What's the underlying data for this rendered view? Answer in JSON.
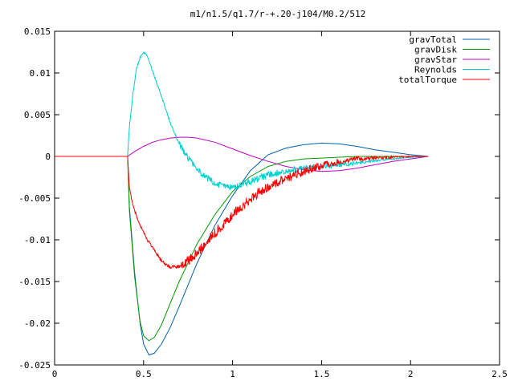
{
  "chart_data": {
    "type": "line",
    "title": "m1/n1.5/q1.7/r-+.20-j104/M0.2/512",
    "xlabel": "",
    "ylabel": "",
    "xlim": [
      0,
      2.5
    ],
    "ylim": [
      -0.025,
      0.015
    ],
    "xticks": [
      "0",
      "0.5",
      "1",
      "1.5",
      "2",
      "2.5"
    ],
    "xtick_values": [
      0,
      0.5,
      1,
      1.5,
      2,
      2.5
    ],
    "yticks": [
      "0.015",
      "0.01",
      "0.005",
      "0",
      "-0.005",
      "-0.01",
      "-0.015",
      "-0.02",
      "-0.025"
    ],
    "ytick_values": [
      0.015,
      0.01,
      0.005,
      0,
      -0.005,
      -0.01,
      -0.015,
      -0.02,
      -0.025
    ],
    "grid": false,
    "legend_position": "top-right",
    "series": [
      {
        "name": "gravTotal",
        "color": "#0060ad",
        "noise": 0,
        "x": [
          0,
          0.41,
          0.42,
          0.45,
          0.48,
          0.5,
          0.53,
          0.56,
          0.6,
          0.65,
          0.7,
          0.8,
          0.9,
          1.0,
          1.1,
          1.2,
          1.3,
          1.4,
          1.5,
          1.6,
          1.7,
          1.8,
          1.9,
          2.0,
          2.1
        ],
        "y": [
          0,
          0,
          -0.006,
          -0.014,
          -0.02,
          -0.0225,
          -0.0238,
          -0.0236,
          -0.0225,
          -0.0205,
          -0.018,
          -0.0128,
          -0.0083,
          -0.0047,
          -0.0017,
          0.0002,
          0.001,
          0.0014,
          0.0016,
          0.0015,
          0.0012,
          0.0008,
          0.0005,
          0.0002,
          0
        ]
      },
      {
        "name": "gravDisk",
        "color": "#009e00",
        "noise": 0,
        "x": [
          0,
          0.41,
          0.42,
          0.45,
          0.48,
          0.5,
          0.53,
          0.56,
          0.6,
          0.65,
          0.7,
          0.8,
          0.9,
          1.0,
          1.1,
          1.2,
          1.3,
          1.4,
          1.5,
          1.6,
          1.7,
          1.8,
          1.9,
          2.0,
          2.1
        ],
        "y": [
          0,
          0,
          -0.0065,
          -0.0145,
          -0.0198,
          -0.0215,
          -0.0221,
          -0.0217,
          -0.0202,
          -0.0176,
          -0.015,
          -0.0105,
          -0.007,
          -0.0042,
          -0.0024,
          -0.0012,
          -0.0006,
          -0.0003,
          -0.0002,
          -0.0001,
          0,
          0,
          0,
          0,
          0
        ]
      },
      {
        "name": "gravStar",
        "color": "#c000c0",
        "noise": 0,
        "x": [
          0,
          0.41,
          0.45,
          0.5,
          0.55,
          0.6,
          0.65,
          0.7,
          0.75,
          0.8,
          0.9,
          1.0,
          1.1,
          1.2,
          1.3,
          1.4,
          1.5,
          1.6,
          1.7,
          1.8,
          1.9,
          2.0,
          2.1
        ],
        "y": [
          0,
          0,
          0.0006,
          0.0012,
          0.0017,
          0.002,
          0.0022,
          0.0023,
          0.0023,
          0.0022,
          0.0017,
          0.0009,
          0.0001,
          -0.0006,
          -0.0012,
          -0.0016,
          -0.0018,
          -0.0017,
          -0.0014,
          -0.001,
          -0.0006,
          -0.0003,
          0
        ]
      },
      {
        "name": "Reynolds",
        "color": "#00d0d0",
        "noise": 0.0008,
        "x": [
          0,
          0.41,
          0.42,
          0.44,
          0.46,
          0.48,
          0.5,
          0.52,
          0.55,
          0.6,
          0.65,
          0.7,
          0.75,
          0.8,
          0.85,
          0.9,
          0.95,
          1.0,
          1.05,
          1.1,
          1.15,
          1.2,
          1.3,
          1.4,
          1.5,
          1.6,
          1.7,
          1.8,
          1.9,
          2.0,
          2.1
        ],
        "y": [
          0,
          0,
          0.0035,
          0.0075,
          0.0105,
          0.0118,
          0.0125,
          0.012,
          0.0103,
          0.0072,
          0.004,
          0.0015,
          -0.0002,
          -0.0015,
          -0.0025,
          -0.0032,
          -0.0036,
          -0.0037,
          -0.0034,
          -0.003,
          -0.0026,
          -0.0022,
          -0.0018,
          -0.0014,
          -0.0012,
          -0.001,
          -0.0008,
          -0.0005,
          -0.0003,
          -0.0001,
          0
        ]
      },
      {
        "name": "totalTorque",
        "color": "#ff0000",
        "noise": 0.0012,
        "x": [
          0,
          0.41,
          0.42,
          0.44,
          0.46,
          0.48,
          0.5,
          0.55,
          0.6,
          0.65,
          0.7,
          0.75,
          0.8,
          0.85,
          0.9,
          0.95,
          1.0,
          1.05,
          1.1,
          1.15,
          1.2,
          1.3,
          1.4,
          1.5,
          1.6,
          1.7,
          1.8,
          1.9,
          2.0,
          2.1
        ],
        "y": [
          0,
          0,
          -0.0038,
          -0.0058,
          -0.0072,
          -0.0082,
          -0.0092,
          -0.011,
          -0.0125,
          -0.0133,
          -0.0132,
          -0.0125,
          -0.0116,
          -0.0104,
          -0.0092,
          -0.0081,
          -0.007,
          -0.006,
          -0.0051,
          -0.0043,
          -0.0036,
          -0.0026,
          -0.0018,
          -0.0011,
          -0.0006,
          -0.0003,
          -0.0002,
          -0.0001,
          0,
          0
        ]
      }
    ]
  }
}
